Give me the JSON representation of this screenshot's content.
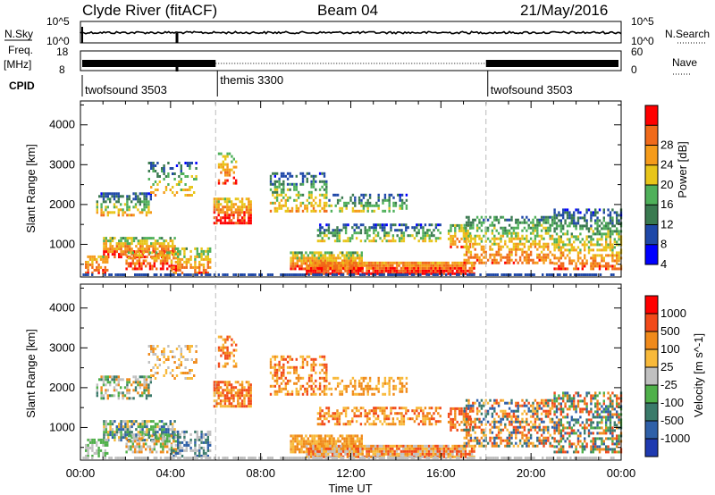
{
  "header": {
    "station": "Clyde River (fitACF)",
    "beam": "Beam 04",
    "date": "21/May/2016"
  },
  "top_panels": {
    "nsky_label": "N.Sky",
    "nsky_ticks": [
      "10^5",
      "10^0"
    ],
    "nsearch_label": "N.Search",
    "nsearch_ticks": [
      "10^5",
      "10^0"
    ],
    "freq_label": "Freq.",
    "freq_unit": "[MHz]",
    "freq_ticks": [
      "18",
      "8"
    ],
    "nave_label": "Nave",
    "nave_ticks": [
      "60",
      "0"
    ],
    "cpid_label": "CPID"
  },
  "cpid_segments": [
    {
      "name": "twofsound 3503",
      "start_h": 0,
      "end_h": 6
    },
    {
      "name": "themis 3300",
      "start_h": 6,
      "end_h": 18
    },
    {
      "name": "twofsound 3503",
      "start_h": 18,
      "end_h": 24
    }
  ],
  "x_axis": {
    "label": "Time UT",
    "ticks": [
      "00:00",
      "04:00",
      "08:00",
      "12:00",
      "16:00",
      "20:00",
      "00:00"
    ],
    "range_hours": [
      0,
      24
    ]
  },
  "colors": {
    "power": [
      "#0000ff",
      "#1f48a8",
      "#3a7a50",
      "#4fb05a",
      "#e8c51a",
      "#f59b1a",
      "#f06a1a",
      "#ff0000"
    ],
    "velocity": [
      "#ff0000",
      "#f24a1a",
      "#f08a1a",
      "#f8b93a",
      "#c0c0c0",
      "#4fb04a",
      "#3a7a6a",
      "#2f60a8",
      "#1f3ab0"
    ]
  },
  "chart_data": [
    {
      "type": "heatmap",
      "name": "power",
      "ylabel": "Slant Range [km]",
      "yticks": [
        "1000",
        "2000",
        "3000",
        "4000"
      ],
      "ylim_km": [
        180,
        4600
      ],
      "colorbar_label": "Power [dB]",
      "colorbar_ticks": [
        "4",
        "8",
        "12",
        "16",
        "20",
        "24",
        "28"
      ],
      "colorbar_range": [
        0,
        30
      ]
    },
    {
      "type": "heatmap",
      "name": "velocity",
      "ylabel": "Slant Range [km]",
      "yticks": [
        "1000",
        "2000",
        "3000",
        "4000"
      ],
      "ylim_km": [
        180,
        4600
      ],
      "colorbar_label": "Velocity [m s^-1]",
      "colorbar_ticks": [
        "1000",
        "500",
        "100",
        "25",
        "-25",
        "-100",
        "-500",
        "-1000"
      ]
    }
  ]
}
